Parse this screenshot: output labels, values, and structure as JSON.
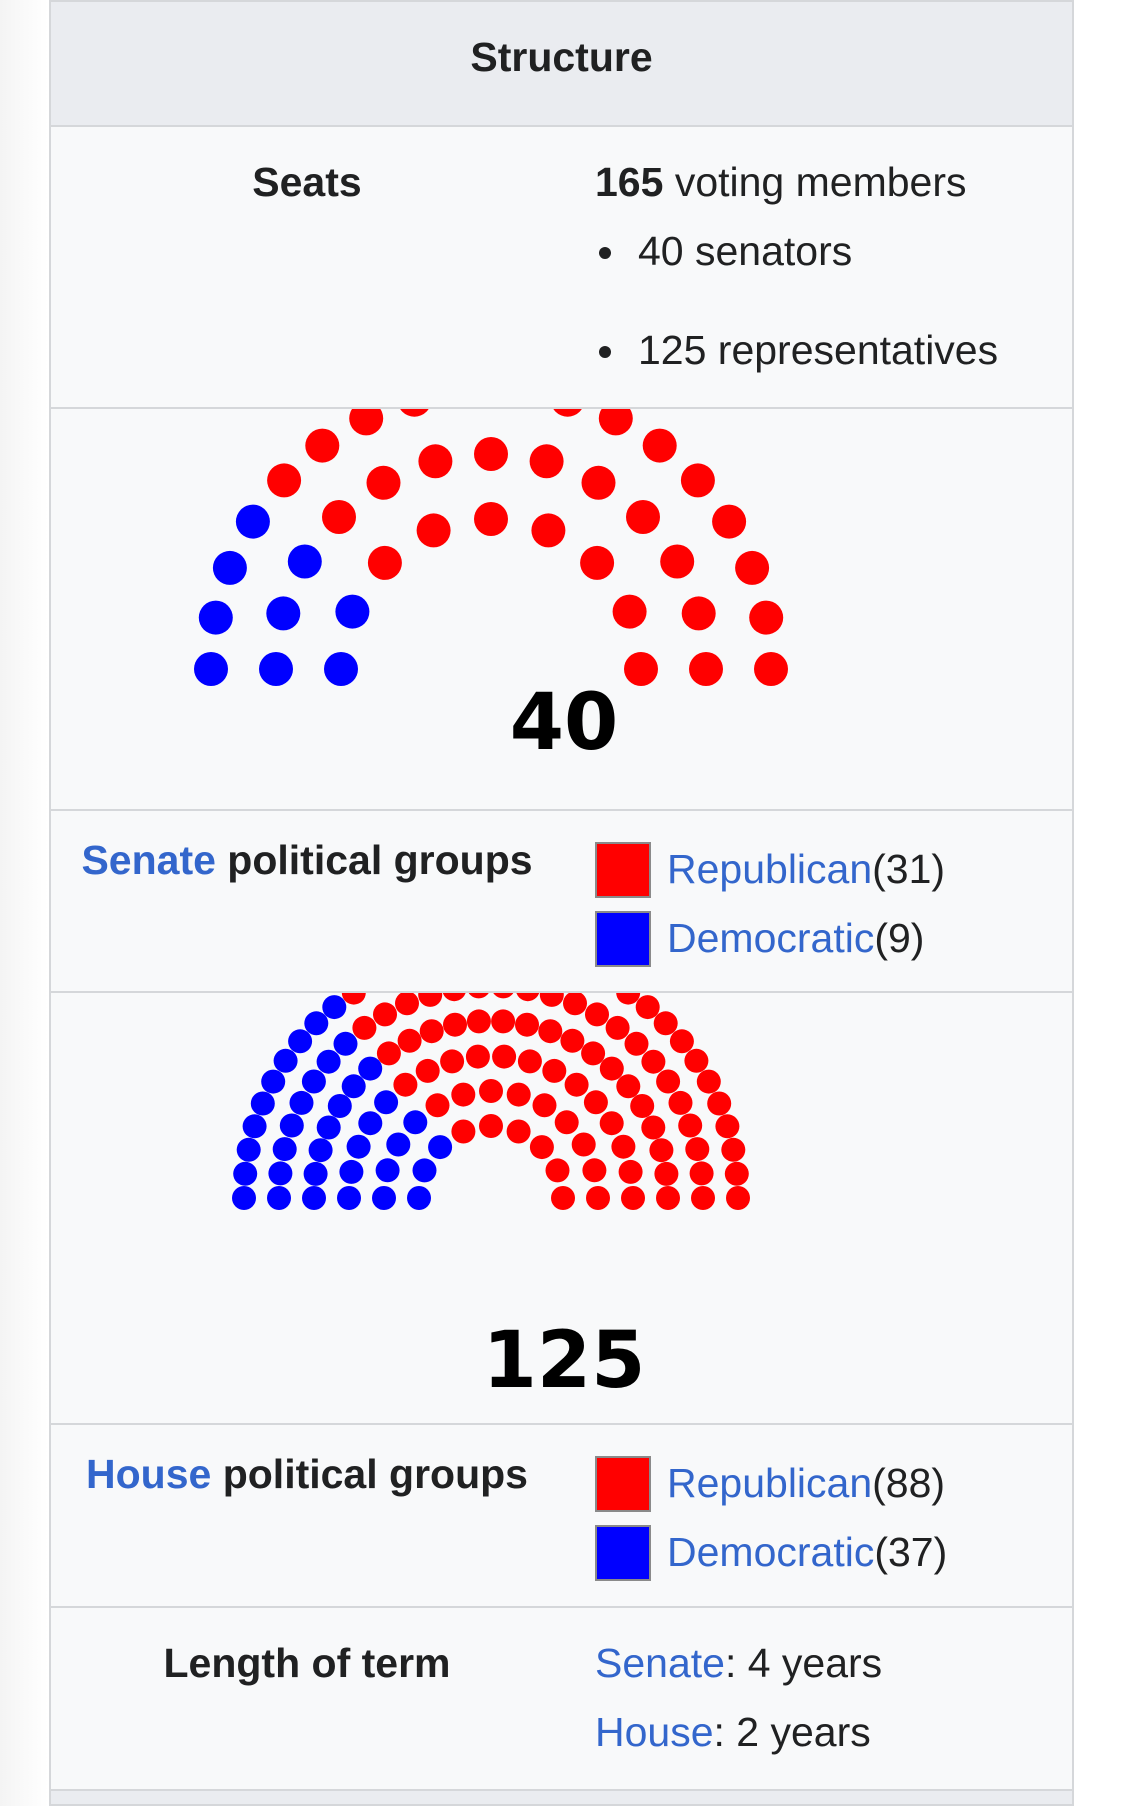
{
  "header": {
    "title": "Structure"
  },
  "seats": {
    "label": "Seats",
    "total_number": "165",
    "total_text": " voting members",
    "items": [
      "40 senators",
      "125 representatives"
    ]
  },
  "senate_chart": {
    "total_label": "40",
    "colors": {
      "Republican": "#ff0000",
      "Democratic": "#0000ff"
    }
  },
  "senate_groups": {
    "label_link": "Senate",
    "label_rest": " political groups",
    "parties": [
      {
        "name": "Republican",
        "count_text": " (31)",
        "color": "#ff0000"
      },
      {
        "name": "Democratic",
        "count_text": " (9)",
        "color": "#0000ff"
      }
    ]
  },
  "house_chart": {
    "total_label": "125",
    "colors": {
      "Republican": "#ff0000",
      "Democratic": "#0000ff"
    }
  },
  "house_groups": {
    "label_link": "House",
    "label_rest": " political groups",
    "parties": [
      {
        "name": "Republican",
        "count_text": " (88)",
        "color": "#ff0000"
      },
      {
        "name": "Democratic",
        "count_text": " (37)",
        "color": "#0000ff"
      }
    ]
  },
  "term": {
    "label": "Length of term",
    "senate_link": "Senate",
    "senate_value": ": 4 years",
    "house_link": "House",
    "house_value": ": 2 years"
  },
  "chart_data": [
    {
      "type": "parliament",
      "total": 40,
      "series": [
        {
          "name": "Democratic",
          "value": 9,
          "color": "#0000ff"
        },
        {
          "name": "Republican",
          "value": 31,
          "color": "#ff0000"
        }
      ]
    },
    {
      "type": "parliament",
      "total": 125,
      "series": [
        {
          "name": "Democratic",
          "value": 37,
          "color": "#0000ff"
        },
        {
          "name": "Republican",
          "value": 88,
          "color": "#ff0000"
        }
      ]
    }
  ]
}
